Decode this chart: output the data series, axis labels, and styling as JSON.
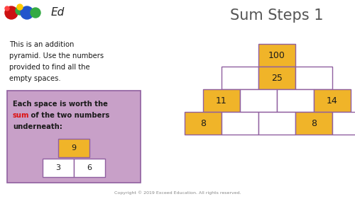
{
  "title": "Sum Steps 1",
  "bg_color": "#ffffff",
  "purple_bg": "#c8a0c8",
  "gold_color": "#f0b429",
  "border_color": "#9060a0",
  "white_box": "#ffffff",
  "text_color": "#1a1a1a",
  "red_color": "#dd1111",
  "copyright": "Copyright © 2019 Exceed Education. All rights reserved.",
  "description_lines": [
    "This is an addition",
    "pyramid. Use the numbers",
    "provided to find all the",
    "empty spaces."
  ],
  "instruction_line1": "Each space is worth the",
  "instruction_line2_part1": "sum",
  "instruction_line2_part2": " of the two numbers",
  "instruction_line3": "underneath:",
  "pyramid_rows": [
    [
      {
        "val": "100",
        "gold": true
      }
    ],
    [
      {
        "val": "",
        "gold": false
      },
      {
        "val": "25",
        "gold": true
      },
      {
        "val": "",
        "gold": false
      }
    ],
    [
      {
        "val": "11",
        "gold": true
      },
      {
        "val": "",
        "gold": false
      },
      {
        "val": "",
        "gold": false
      },
      {
        "val": "14",
        "gold": true
      }
    ],
    [
      {
        "val": "8",
        "gold": true
      },
      {
        "val": "",
        "gold": false
      },
      {
        "val": "",
        "gold": false
      },
      {
        "val": "8",
        "gold": true
      },
      {
        "val": "",
        "gold": false
      }
    ]
  ],
  "mini_top": "9",
  "mini_bl": "3",
  "mini_br": "6"
}
